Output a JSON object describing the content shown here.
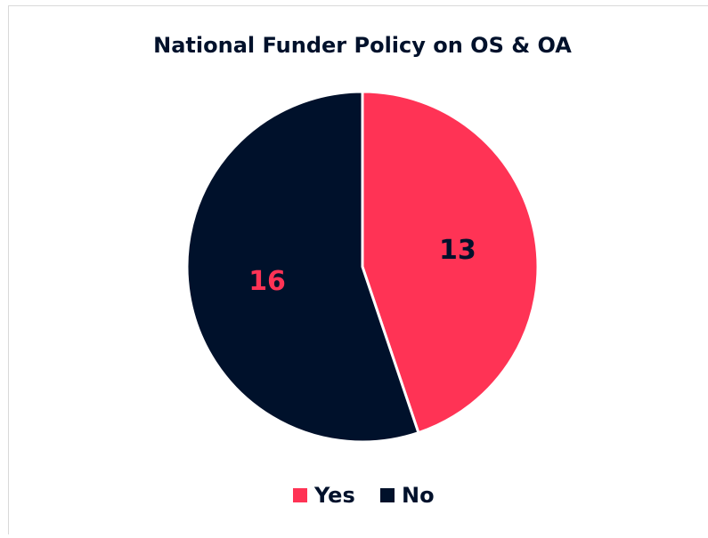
{
  "chart_data": {
    "type": "pie",
    "title": "National Funder Policy on OS & OA",
    "categories": [
      "Yes",
      "No"
    ],
    "values": [
      13,
      16
    ],
    "colors": [
      "#ff3355",
      "#00112b"
    ],
    "label_colors": [
      "#00112b",
      "#ff3355"
    ],
    "legend": "bottom"
  }
}
